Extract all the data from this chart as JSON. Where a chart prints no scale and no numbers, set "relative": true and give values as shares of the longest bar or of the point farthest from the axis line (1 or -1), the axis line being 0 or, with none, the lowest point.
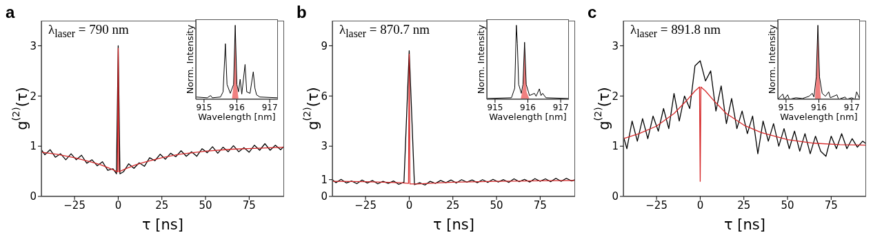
{
  "chart_data": [
    {
      "type": "line",
      "title": "a",
      "xlabel": "τ [ns]",
      "ylabel": "g$^{(2)}$(τ)",
      "annotations": [
        "λ$_{laser}$ = 790 nm"
      ],
      "xlim": [
        -44,
        95
      ],
      "xticks": [
        -25,
        0,
        25,
        50,
        75
      ],
      "ylim": [
        0,
        3.5
      ],
      "yticks": [
        0,
        1,
        2,
        3
      ],
      "series": [
        {
          "color": "#000000",
          "x": [
            -44,
            -42,
            -39,
            -36,
            -33,
            -30,
            -27,
            -24,
            -21,
            -18,
            -15,
            -12,
            -9,
            -6,
            -3,
            -1,
            0,
            1,
            3,
            6,
            9,
            12,
            15,
            18,
            21,
            24,
            27,
            30,
            33,
            36,
            39,
            42,
            45,
            48,
            51,
            54,
            57,
            60,
            63,
            66,
            69,
            72,
            75,
            78,
            81,
            84,
            87,
            90,
            93,
            95
          ],
          "values": [
            0.93,
            0.83,
            0.93,
            0.78,
            0.85,
            0.73,
            0.85,
            0.73,
            0.82,
            0.66,
            0.73,
            0.61,
            0.69,
            0.52,
            0.55,
            0.45,
            3.0,
            0.45,
            0.49,
            0.65,
            0.56,
            0.67,
            0.6,
            0.77,
            0.71,
            0.84,
            0.74,
            0.86,
            0.79,
            0.91,
            0.8,
            0.89,
            0.8,
            0.95,
            0.87,
            0.99,
            0.86,
            0.98,
            0.89,
            1.01,
            0.89,
            0.97,
            0.88,
            1.02,
            0.92,
            1.05,
            0.92,
            1.02,
            0.93,
            1.0
          ]
        },
        {
          "color": "#d62728",
          "x": [
            -44,
            -35,
            -25,
            -15,
            -10,
            -5,
            -1,
            -0.4,
            0,
            0.4,
            1,
            5,
            10,
            15,
            25,
            35,
            50,
            65,
            80,
            95
          ],
          "values": [
            0.88,
            0.84,
            0.77,
            0.68,
            0.63,
            0.56,
            0.5,
            0.49,
            2.95,
            0.49,
            0.5,
            0.56,
            0.63,
            0.68,
            0.77,
            0.84,
            0.9,
            0.94,
            0.96,
            0.98
          ]
        }
      ]
    },
    {
      "type": "line",
      "relative": true,
      "xlabel": "Wavelength [nm]",
      "ylabel": "Norm. Intensity",
      "xlim": [
        914.75,
        917.25
      ],
      "xticks": [
        915,
        916,
        917
      ],
      "tick_labels": "x",
      "series": [
        {
          "type": "area",
          "color": "#f08080",
          "x": [
            915.85,
            915.9,
            915.93,
            915.95,
            915.97,
            916.0,
            916.05
          ],
          "values": [
            0,
            0.2,
            0.6,
            1.0,
            0.6,
            0.2,
            0
          ]
        },
        {
          "color": "#000000",
          "x": [
            914.75,
            915.1,
            915.2,
            915.25,
            915.5,
            915.58,
            915.65,
            915.7,
            915.8,
            915.9,
            915.95,
            916.0,
            916.05,
            916.1,
            916.15,
            916.25,
            916.3,
            916.4,
            916.5,
            916.55,
            916.6,
            916.7,
            917.25
          ],
          "values": [
            0.03,
            0.02,
            0.05,
            0.02,
            0.03,
            0.1,
            0.75,
            0.2,
            0.08,
            0.2,
            1.0,
            0.2,
            0.1,
            0.27,
            0.07,
            0.47,
            0.1,
            0.08,
            0.37,
            0.15,
            0.06,
            0.03,
            0.02
          ]
        }
      ]
    },
    {
      "type": "line",
      "title": "b",
      "xlabel": "τ [ns]",
      "ylabel": "g$^{(2)}$(τ)",
      "annotations": [
        "λ$_{laser}$ = 870.7 nm"
      ],
      "xlim": [
        -44,
        95
      ],
      "xticks": [
        -25,
        0,
        25,
        50,
        75
      ],
      "ylim": [
        0,
        10.5
      ],
      "yticks": [
        0,
        1,
        3,
        6,
        9
      ],
      "series": [
        {
          "color": "#000000",
          "x": [
            -44,
            -42,
            -39,
            -36,
            -33,
            -30,
            -27,
            -24,
            -21,
            -18,
            -15,
            -12,
            -9,
            -6,
            -3,
            0,
            3,
            6,
            9,
            12,
            15,
            18,
            21,
            24,
            27,
            30,
            33,
            36,
            39,
            42,
            45,
            48,
            51,
            54,
            57,
            60,
            63,
            66,
            69,
            72,
            75,
            78,
            81,
            84,
            87,
            90,
            93,
            95
          ],
          "values": [
            1.0,
            0.82,
            1.02,
            0.8,
            0.92,
            0.76,
            0.98,
            0.8,
            0.95,
            0.75,
            0.9,
            0.78,
            0.92,
            0.72,
            0.85,
            8.7,
            0.7,
            0.82,
            0.68,
            0.9,
            0.78,
            0.95,
            0.82,
            0.98,
            0.8,
            1.0,
            0.85,
            0.98,
            0.82,
            1.0,
            0.84,
            1.02,
            0.86,
            1.0,
            0.84,
            1.05,
            0.88,
            1.02,
            0.86,
            1.06,
            0.9,
            1.05,
            0.88,
            1.08,
            0.9,
            1.08,
            0.92,
            1.0
          ]
        },
        {
          "color": "#d62728",
          "x": [
            -44,
            -25,
            -5,
            -0.4,
            0,
            0.4,
            5,
            25,
            50,
            75,
            95
          ],
          "values": [
            0.9,
            0.88,
            0.82,
            0.78,
            8.5,
            0.75,
            0.75,
            0.85,
            0.9,
            0.93,
            0.95
          ]
        }
      ]
    },
    {
      "type": "line",
      "relative": true,
      "xlabel": "Wavelength [nm]",
      "ylabel": "Norm. Intensity",
      "xlim": [
        914.75,
        917.25
      ],
      "xticks": [
        915,
        916,
        917
      ],
      "tick_labels": "x",
      "series": [
        {
          "type": "area",
          "color": "#f08080",
          "x": [
            915.78,
            915.85,
            915.88,
            915.9,
            915.92,
            915.96,
            916.05
          ],
          "values": [
            0,
            0.15,
            0.5,
            0.77,
            0.5,
            0.1,
            0
          ]
        },
        {
          "color": "#000000",
          "x": [
            914.75,
            915.5,
            915.6,
            915.65,
            915.68,
            915.72,
            915.8,
            915.85,
            915.9,
            915.95,
            916.05,
            916.2,
            916.25,
            916.35,
            916.4,
            916.45,
            916.55,
            917.25
          ],
          "values": [
            0.01,
            0.02,
            0.15,
            1.0,
            0.75,
            0.2,
            0.08,
            0.2,
            0.77,
            0.2,
            0.05,
            0.08,
            0.04,
            0.14,
            0.05,
            0.08,
            0.02,
            0.01
          ]
        }
      ]
    },
    {
      "type": "line",
      "title": "c",
      "xlabel": "τ [ns]",
      "ylabel": "g$^{(2)}$(τ)",
      "annotations": [
        "λ$_{laser}$ = 891.8 nm"
      ],
      "xlim": [
        -44,
        95
      ],
      "xticks": [
        -25,
        0,
        25,
        50,
        75
      ],
      "ylim": [
        0,
        3.5
      ],
      "yticks": [
        0,
        1,
        2,
        3
      ],
      "series": [
        {
          "color": "#000000",
          "x": [
            -44,
            -42,
            -39,
            -36,
            -33,
            -30,
            -27,
            -24,
            -21,
            -18,
            -15,
            -12,
            -9,
            -6,
            -3,
            0,
            3,
            6,
            9,
            12,
            15,
            18,
            21,
            24,
            27,
            30,
            33,
            36,
            39,
            42,
            45,
            48,
            51,
            54,
            57,
            60,
            63,
            66,
            69,
            72,
            75,
            78,
            81,
            84,
            87,
            90,
            93,
            95
          ],
          "values": [
            1.2,
            0.95,
            1.5,
            1.1,
            1.55,
            1.15,
            1.6,
            1.3,
            1.75,
            1.35,
            2.05,
            1.5,
            2.0,
            1.75,
            2.6,
            2.7,
            2.3,
            2.5,
            1.7,
            2.2,
            1.45,
            1.95,
            1.35,
            1.7,
            1.25,
            1.6,
            0.85,
            1.5,
            1.1,
            1.45,
            1.0,
            1.35,
            0.95,
            1.3,
            0.9,
            1.25,
            0.85,
            1.2,
            0.9,
            0.8,
            1.2,
            0.95,
            1.25,
            0.95,
            1.15,
            0.98,
            1.1,
            1.05
          ]
        },
        {
          "color": "#d62728",
          "x": [
            -44,
            -35,
            -25,
            -15,
            -8,
            -3,
            -0.4,
            0,
            0.4,
            3,
            8,
            15,
            25,
            35,
            50,
            65,
            80,
            95
          ],
          "values": [
            1.15,
            1.25,
            1.4,
            1.65,
            1.9,
            2.1,
            2.18,
            0.3,
            2.18,
            2.1,
            1.9,
            1.65,
            1.42,
            1.27,
            1.13,
            1.06,
            1.03,
            1.02
          ]
        }
      ]
    },
    {
      "type": "line",
      "relative": true,
      "xlabel": "Wavelength [nm]",
      "ylabel": "Norm. Intensity",
      "xlim": [
        914.75,
        917.25
      ],
      "xticks": [
        915,
        916,
        917
      ],
      "tick_labels": "x",
      "series": [
        {
          "type": "area",
          "color": "#f08080",
          "x": [
            915.88,
            915.92,
            915.97,
            916.02,
            916.06
          ],
          "values": [
            0,
            0.3,
            1.0,
            0.3,
            0
          ]
        },
        {
          "color": "#000000",
          "x": [
            914.75,
            914.9,
            914.95,
            915.05,
            915.1,
            915.3,
            915.5,
            915.7,
            915.8,
            915.85,
            915.92,
            915.97,
            916.02,
            916.1,
            916.2,
            916.3,
            916.35,
            916.55,
            916.6,
            916.8,
            916.85,
            917.0,
            917.1,
            917.15,
            917.25
          ],
          "values": [
            0,
            0.07,
            0,
            0.06,
            0,
            0.02,
            0.01,
            0.04,
            0.08,
            0.03,
            0.3,
            1.0,
            0.3,
            0.08,
            0.04,
            0.1,
            0.02,
            0.06,
            0,
            0.03,
            0,
            0.02,
            0,
            0.1,
            0
          ]
        }
      ]
    }
  ]
}
